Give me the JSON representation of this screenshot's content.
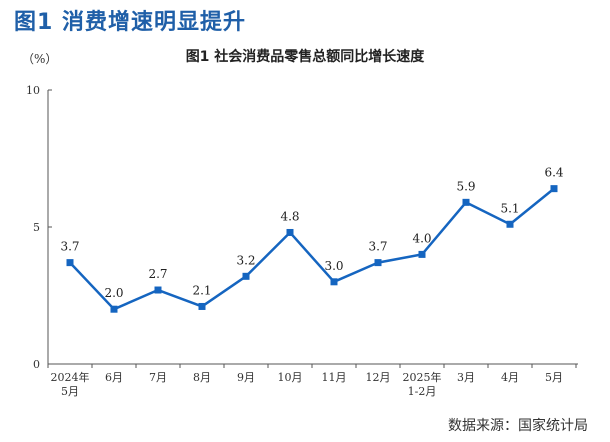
{
  "header": {
    "page_title": "图1 消费增速明显提升",
    "source": "数据来源：国家统计局"
  },
  "chart_data": {
    "type": "line",
    "title": "图1  社会消费品零售总额同比增长速度",
    "ylabel": "（%）",
    "xlabel": "",
    "ylim": [
      0,
      10
    ],
    "yticks": [
      "0",
      "5",
      "10"
    ],
    "categories": [
      [
        "2024年",
        "5月"
      ],
      [
        "6月"
      ],
      [
        "7月"
      ],
      [
        "8月"
      ],
      [
        "9月"
      ],
      [
        "10月"
      ],
      [
        "11月"
      ],
      [
        "12月"
      ],
      [
        "2025年",
        "1-2月"
      ],
      [
        "3月"
      ],
      [
        "4月"
      ],
      [
        "5月"
      ]
    ],
    "series": [
      {
        "name": "社会消费品零售总额同比增长速度",
        "values": [
          3.7,
          2.0,
          2.7,
          2.1,
          3.2,
          4.8,
          3.0,
          3.7,
          4.0,
          5.9,
          5.1,
          6.4
        ],
        "labels": [
          "3.7",
          "2.0",
          "2.7",
          "2.1",
          "3.2",
          "4.8",
          "3.0",
          "3.7",
          "4.0",
          "5.9",
          "5.1",
          "6.4"
        ]
      }
    ],
    "line_color": "#1565c0",
    "grid": false
  }
}
